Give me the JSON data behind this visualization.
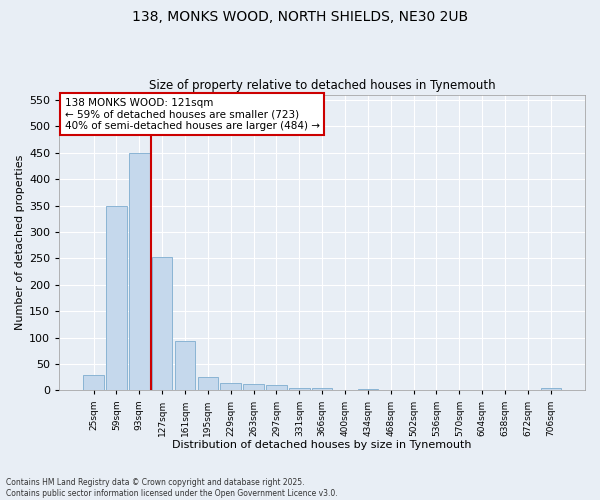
{
  "title_line1": "138, MONKS WOOD, NORTH SHIELDS, NE30 2UB",
  "title_line2": "Size of property relative to detached houses in Tynemouth",
  "xlabel": "Distribution of detached houses by size in Tynemouth",
  "ylabel": "Number of detached properties",
  "categories": [
    "25sqm",
    "59sqm",
    "93sqm",
    "127sqm",
    "161sqm",
    "195sqm",
    "229sqm",
    "263sqm",
    "297sqm",
    "331sqm",
    "366sqm",
    "400sqm",
    "434sqm",
    "468sqm",
    "502sqm",
    "536sqm",
    "570sqm",
    "604sqm",
    "638sqm",
    "672sqm",
    "706sqm"
  ],
  "values": [
    30,
    350,
    450,
    253,
    93,
    26,
    15,
    12,
    10,
    5,
    4,
    0,
    3,
    0,
    0,
    0,
    0,
    0,
    0,
    0,
    4
  ],
  "bar_color": "#c5d8ec",
  "bar_edge_color": "#8ab4d4",
  "vline_color": "#cc0000",
  "annotation_text": "138 MONKS WOOD: 121sqm\n← 59% of detached houses are smaller (723)\n40% of semi-detached houses are larger (484) →",
  "annotation_box_color": "#ffffff",
  "annotation_box_edge": "#cc0000",
  "ylim": [
    0,
    560
  ],
  "yticks": [
    0,
    50,
    100,
    150,
    200,
    250,
    300,
    350,
    400,
    450,
    500,
    550
  ],
  "background_color": "#e8eef5",
  "grid_color": "#ffffff",
  "footer_line1": "Contains HM Land Registry data © Crown copyright and database right 2025.",
  "footer_line2": "Contains public sector information licensed under the Open Government Licence v3.0."
}
